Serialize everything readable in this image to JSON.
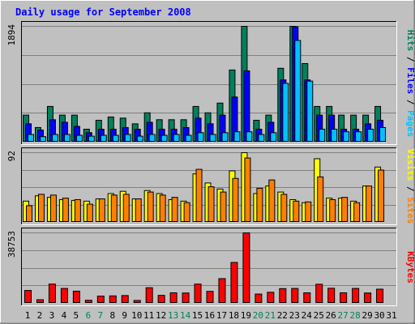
{
  "chart_data": {
    "type": "bar",
    "title": "Daily usage for September 2008",
    "categories": [
      "1",
      "2",
      "3",
      "4",
      "5",
      "6",
      "7",
      "8",
      "9",
      "10",
      "11",
      "12",
      "13",
      "14",
      "15",
      "16",
      "17",
      "18",
      "19",
      "20",
      "21",
      "22",
      "23",
      "24",
      "25",
      "26",
      "27",
      "28",
      "29",
      "30",
      "31"
    ],
    "weekend_days": [
      6,
      7,
      13,
      14,
      20,
      21,
      27,
      28
    ],
    "grid": true,
    "colors": {
      "hits": "#00805c",
      "files": "#0000ff",
      "pages": "#00c0ff",
      "visits": "#ffff00",
      "sites": "#ff8000",
      "kbytes": "#ff0000",
      "title": "#0000ff",
      "weekday_label": "#000000",
      "weekend_label": "#00805c",
      "background": "#c0c0c0"
    },
    "panels": [
      {
        "id": "hits",
        "ymax": 1894,
        "ymax_label": "1894",
        "legend": [
          {
            "text": "Pages",
            "color": "#00c0ff"
          },
          {
            "text": "Files",
            "color": "#0000ff"
          },
          {
            "text": "Hits",
            "color": "#00805c"
          }
        ],
        "series": [
          {
            "name": "Hits",
            "values": [
              442,
              239,
              584,
              442,
              442,
              212,
              358,
              412,
              393,
              300,
              480,
              367,
              367,
              367,
              584,
              480,
              639,
              1180,
              1894,
              358,
              442,
              1208,
              1894,
              1285,
              584,
              584,
              442,
              442,
              442,
              584,
              0
            ]
          },
          {
            "name": "Files",
            "values": [
              300,
              197,
              367,
              325,
              258,
              155,
              212,
              212,
              239,
              212,
              325,
              212,
              212,
              239,
              393,
              300,
              442,
              738,
              1166,
              212,
              325,
              1018,
              1888,
              1018,
              442,
              442,
              212,
              212,
              300,
              358,
              0
            ]
          },
          {
            "name": "Pages",
            "values": [
              126,
              90,
              126,
              126,
              112,
              98,
              112,
              112,
              126,
              98,
              126,
              112,
              126,
              112,
              155,
              126,
              155,
              170,
              170,
              126,
              155,
              962,
              1663,
              998,
              212,
              212,
              170,
              170,
              212,
              239,
              0
            ]
          }
        ]
      },
      {
        "id": "visits",
        "ymax": 92,
        "ymax_label": "92",
        "legend": [
          {
            "text": "Sites",
            "color": "#ff8000"
          },
          {
            "text": "Visits",
            "color": "#ffff00"
          }
        ],
        "series": [
          {
            "name": "Visits",
            "values": [
              28,
              35,
              33,
              30,
              29,
              28,
              31,
              38,
              41,
              31,
              42,
              38,
              30,
              28,
              64,
              52,
              44,
              68,
              92,
              38,
              48,
              40,
              30,
              26,
              84,
              32,
              32,
              28,
              48,
              73,
              0
            ]
          },
          {
            "name": "Sites",
            "values": [
              22,
              37,
              36,
              32,
              30,
              24,
              31,
              36,
              37,
              31,
              40,
              36,
              33,
              26,
              70,
              47,
              40,
              58,
              85,
              45,
              56,
              37,
              28,
              27,
              60,
              30,
              33,
              26,
              48,
              69,
              0
            ]
          }
        ]
      },
      {
        "id": "kbytes",
        "ymax": 38753,
        "ymax_label": "38753",
        "legend": [
          {
            "text": "KBytes",
            "color": "#ff0000"
          }
        ],
        "series": [
          {
            "name": "KBytes",
            "values": [
              7100,
              2000,
              10600,
              8200,
              6700,
              1700,
              4000,
              4100,
              4300,
              1600,
              8600,
              4400,
              5800,
              5700,
              10600,
              6600,
              13600,
              22500,
              38753,
              5100,
              6100,
              8100,
              8200,
              5800,
              10500,
              8300,
              5800,
              8200,
              5700,
              7800,
              0
            ]
          }
        ]
      }
    ]
  }
}
